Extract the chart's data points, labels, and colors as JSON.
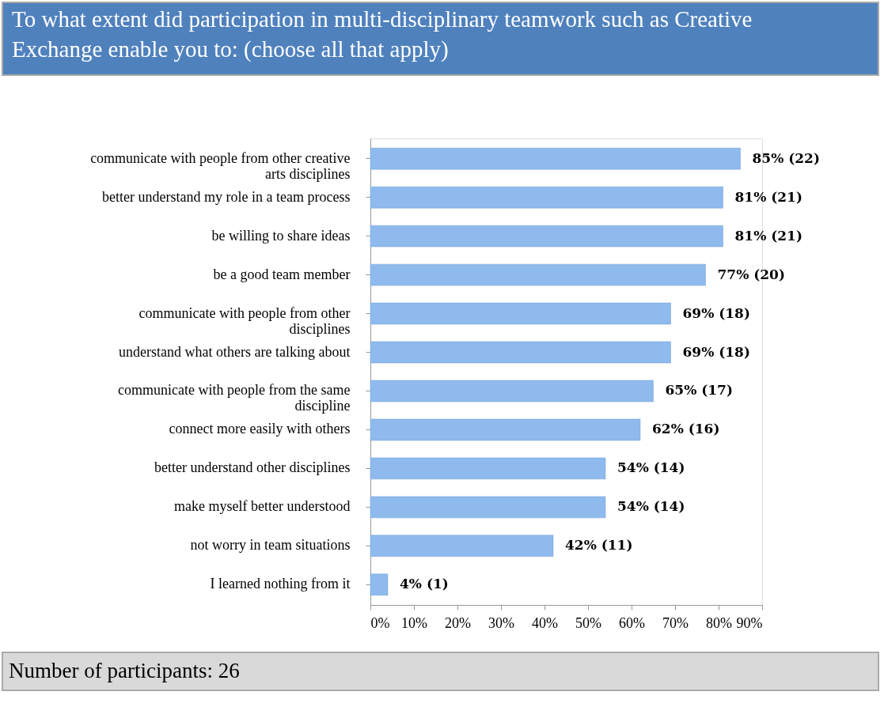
{
  "chart_data": {
    "type": "bar",
    "orientation": "horizontal",
    "title": "To what extent did participation in multi-disciplinary teamwork such as Creative Exchange enable you to: (choose all that apply)",
    "categories": [
      "communicate with people from other creative arts disciplines",
      "better understand my role in a team process",
      "be willing to share ideas",
      "be a good team member",
      "communicate with people from other disciplines",
      "understand what others are talking about",
      "communicate with people from the same discipline",
      "connect more easily with others",
      "better understand other disciplines",
      "make myself better understood",
      "not worry in team situations",
      "I learned nothing from it"
    ],
    "values": [
      85,
      81,
      81,
      77,
      69,
      69,
      65,
      62,
      54,
      54,
      42,
      4
    ],
    "value_labels": [
      "85% (22)",
      "81% (21)",
      "81% (21)",
      "77% (20)",
      "69% (18)",
      "69% (18)",
      "65% (17)",
      "62% (16)",
      "54% (14)",
      "54% (14)",
      "42% (11)",
      "4% (1)"
    ],
    "color": "#8fbaed",
    "xlim": [
      0,
      90
    ],
    "xticks": [
      {
        "value": 0,
        "label": "0%"
      },
      {
        "value": 10,
        "label": "10%"
      },
      {
        "value": 20,
        "label": "20%"
      },
      {
        "value": 30,
        "label": "30%"
      },
      {
        "value": 40,
        "label": "40%"
      },
      {
        "value": 50,
        "label": "50%"
      },
      {
        "value": 60,
        "label": "60%"
      },
      {
        "value": 70,
        "label": "70%"
      },
      {
        "value": 80,
        "label": "80%"
      },
      {
        "value": 90,
        "label": "90%"
      }
    ],
    "grid": false,
    "annotations": [
      "Number of participants: 26"
    ]
  }
}
